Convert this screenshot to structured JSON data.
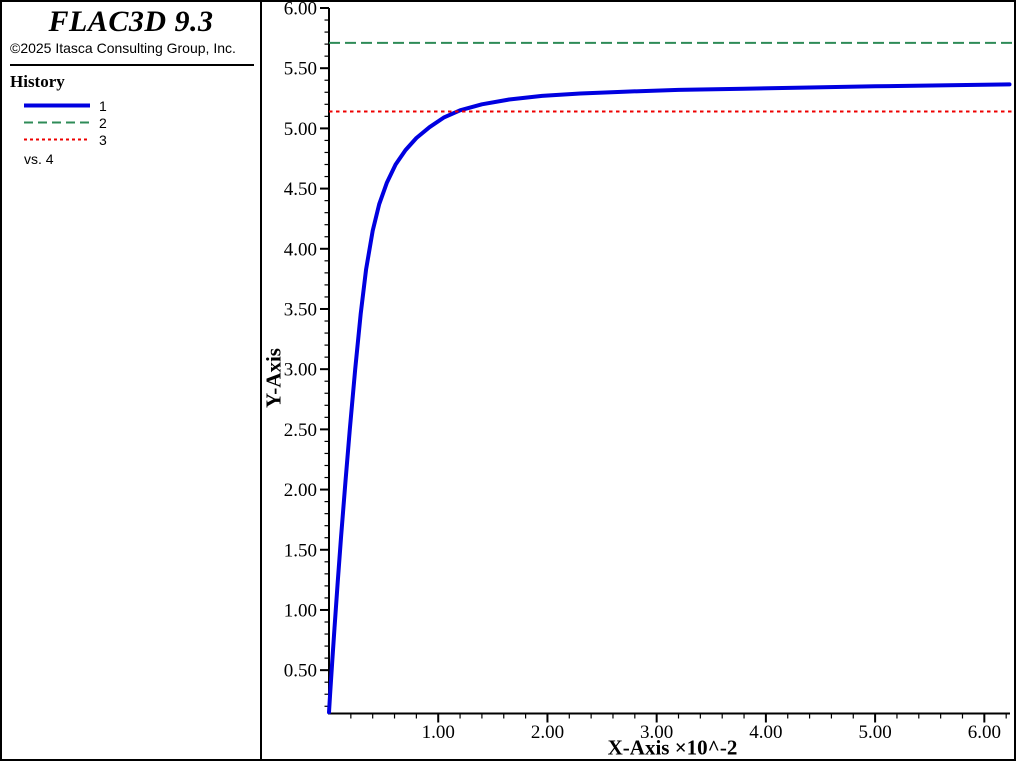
{
  "sidebar": {
    "title": "FLAC3D 9.3",
    "copyright": "©2025 Itasca Consulting Group, Inc.",
    "legend_title": "History",
    "legend_items": [
      {
        "label": "1",
        "color": "#0000e0",
        "dash": "none",
        "width": 4
      },
      {
        "label": "2",
        "color": "#2e8b57",
        "dash": "9 5",
        "width": 2
      },
      {
        "label": "3",
        "color": "#ee0000",
        "dash": "3 3",
        "width": 2
      }
    ],
    "vs_label": "vs. 4"
  },
  "chart_data": {
    "type": "line",
    "title": "",
    "xlabel": "X-Axis ×10^-2",
    "ylabel": "Y-Axis",
    "xlim": [
      0,
      6.235
    ],
    "ylim": [
      0.14,
      6.0
    ],
    "grid": false,
    "legend_position": "left-panel",
    "x_ticks": {
      "values": [
        1,
        2,
        3,
        4,
        5,
        6
      ],
      "labels": [
        "1.00",
        "2.00",
        "3.00",
        "4.00",
        "5.00",
        "6.00"
      ],
      "minor_step": 0.2
    },
    "y_ticks": {
      "values": [
        0.5,
        1.0,
        1.5,
        2.0,
        2.5,
        3.0,
        3.5,
        4.0,
        4.5,
        5.0,
        5.5,
        6.0
      ],
      "labels": [
        "0.50",
        "1.00",
        "1.50",
        "2.00",
        "2.50",
        "3.00",
        "3.50",
        "4.00",
        "4.50",
        "5.00",
        "5.50",
        "6.00"
      ],
      "minor_step": 0.1
    },
    "series": [
      {
        "name": "1",
        "kind": "curve",
        "color": "#0000e0",
        "width": 4,
        "dash": "none",
        "points": [
          [
            0.0,
            0.15
          ],
          [
            0.01,
            0.3
          ],
          [
            0.03,
            0.58
          ],
          [
            0.05,
            0.85
          ],
          [
            0.08,
            1.23
          ],
          [
            0.11,
            1.6
          ],
          [
            0.15,
            2.06
          ],
          [
            0.19,
            2.5
          ],
          [
            0.24,
            3.0
          ],
          [
            0.29,
            3.46
          ],
          [
            0.34,
            3.83
          ],
          [
            0.4,
            4.15
          ],
          [
            0.46,
            4.37
          ],
          [
            0.53,
            4.55
          ],
          [
            0.61,
            4.7
          ],
          [
            0.7,
            4.82
          ],
          [
            0.8,
            4.92
          ],
          [
            0.92,
            5.01
          ],
          [
            1.05,
            5.09
          ],
          [
            1.2,
            5.15
          ],
          [
            1.4,
            5.2
          ],
          [
            1.65,
            5.24
          ],
          [
            1.95,
            5.27
          ],
          [
            2.3,
            5.29
          ],
          [
            2.7,
            5.305
          ],
          [
            3.2,
            5.32
          ],
          [
            3.8,
            5.33
          ],
          [
            4.4,
            5.34
          ],
          [
            5.0,
            5.35
          ],
          [
            5.6,
            5.357
          ],
          [
            6.23,
            5.365
          ]
        ]
      },
      {
        "name": "2",
        "kind": "hline",
        "color": "#2e8b57",
        "width": 2,
        "dash": "11 5",
        "y": 5.71
      },
      {
        "name": "3",
        "kind": "hline",
        "color": "#ee0000",
        "width": 2,
        "dash": "3.5 3.5",
        "y": 5.14
      }
    ]
  }
}
